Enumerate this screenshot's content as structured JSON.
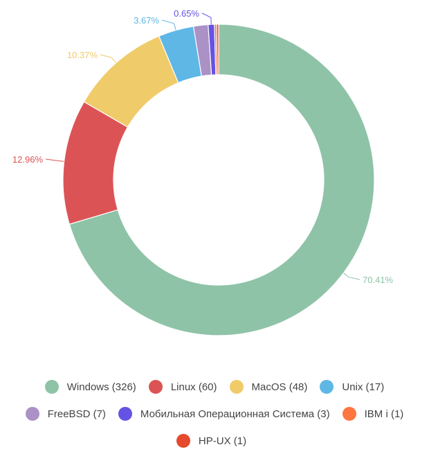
{
  "chart_data": {
    "type": "pie",
    "donut": true,
    "title": "",
    "series": [
      {
        "name": "Windows",
        "count": 326,
        "percent": 70.41,
        "label": "70.41%",
        "legend": "Windows (326)",
        "color": "#8ec3a7"
      },
      {
        "name": "Linux",
        "count": 60,
        "percent": 12.96,
        "label": "12.96%",
        "legend": "Linux (60)",
        "color": "#dc5356"
      },
      {
        "name": "MacOS",
        "count": 48,
        "percent": 10.37,
        "label": "10.37%",
        "legend": "MacOS (48)",
        "color": "#f0cb69"
      },
      {
        "name": "Unix",
        "count": 17,
        "percent": 3.67,
        "label": "3.67%",
        "legend": "Unix (17)",
        "color": "#5fb7e5"
      },
      {
        "name": "FreeBSD",
        "count": 7,
        "percent": 1.51,
        "label": "",
        "legend": "FreeBSD (7)",
        "color": "#ab91c5"
      },
      {
        "name": "Мобильная Операционная Система",
        "count": 3,
        "percent": 0.65,
        "label": "0.65%",
        "legend": "Мобильная Операционная Система (3)",
        "color": "#6453e4"
      },
      {
        "name": "IBM i",
        "count": 1,
        "percent": 0.22,
        "label": "",
        "legend": "IBM i (1)",
        "color": "#fd7541"
      },
      {
        "name": "HP-UX",
        "count": 1,
        "percent": 0.22,
        "label": "",
        "legend": "HP-UX (1)",
        "color": "#e64a2e"
      }
    ],
    "legend_position": "bottom"
  }
}
